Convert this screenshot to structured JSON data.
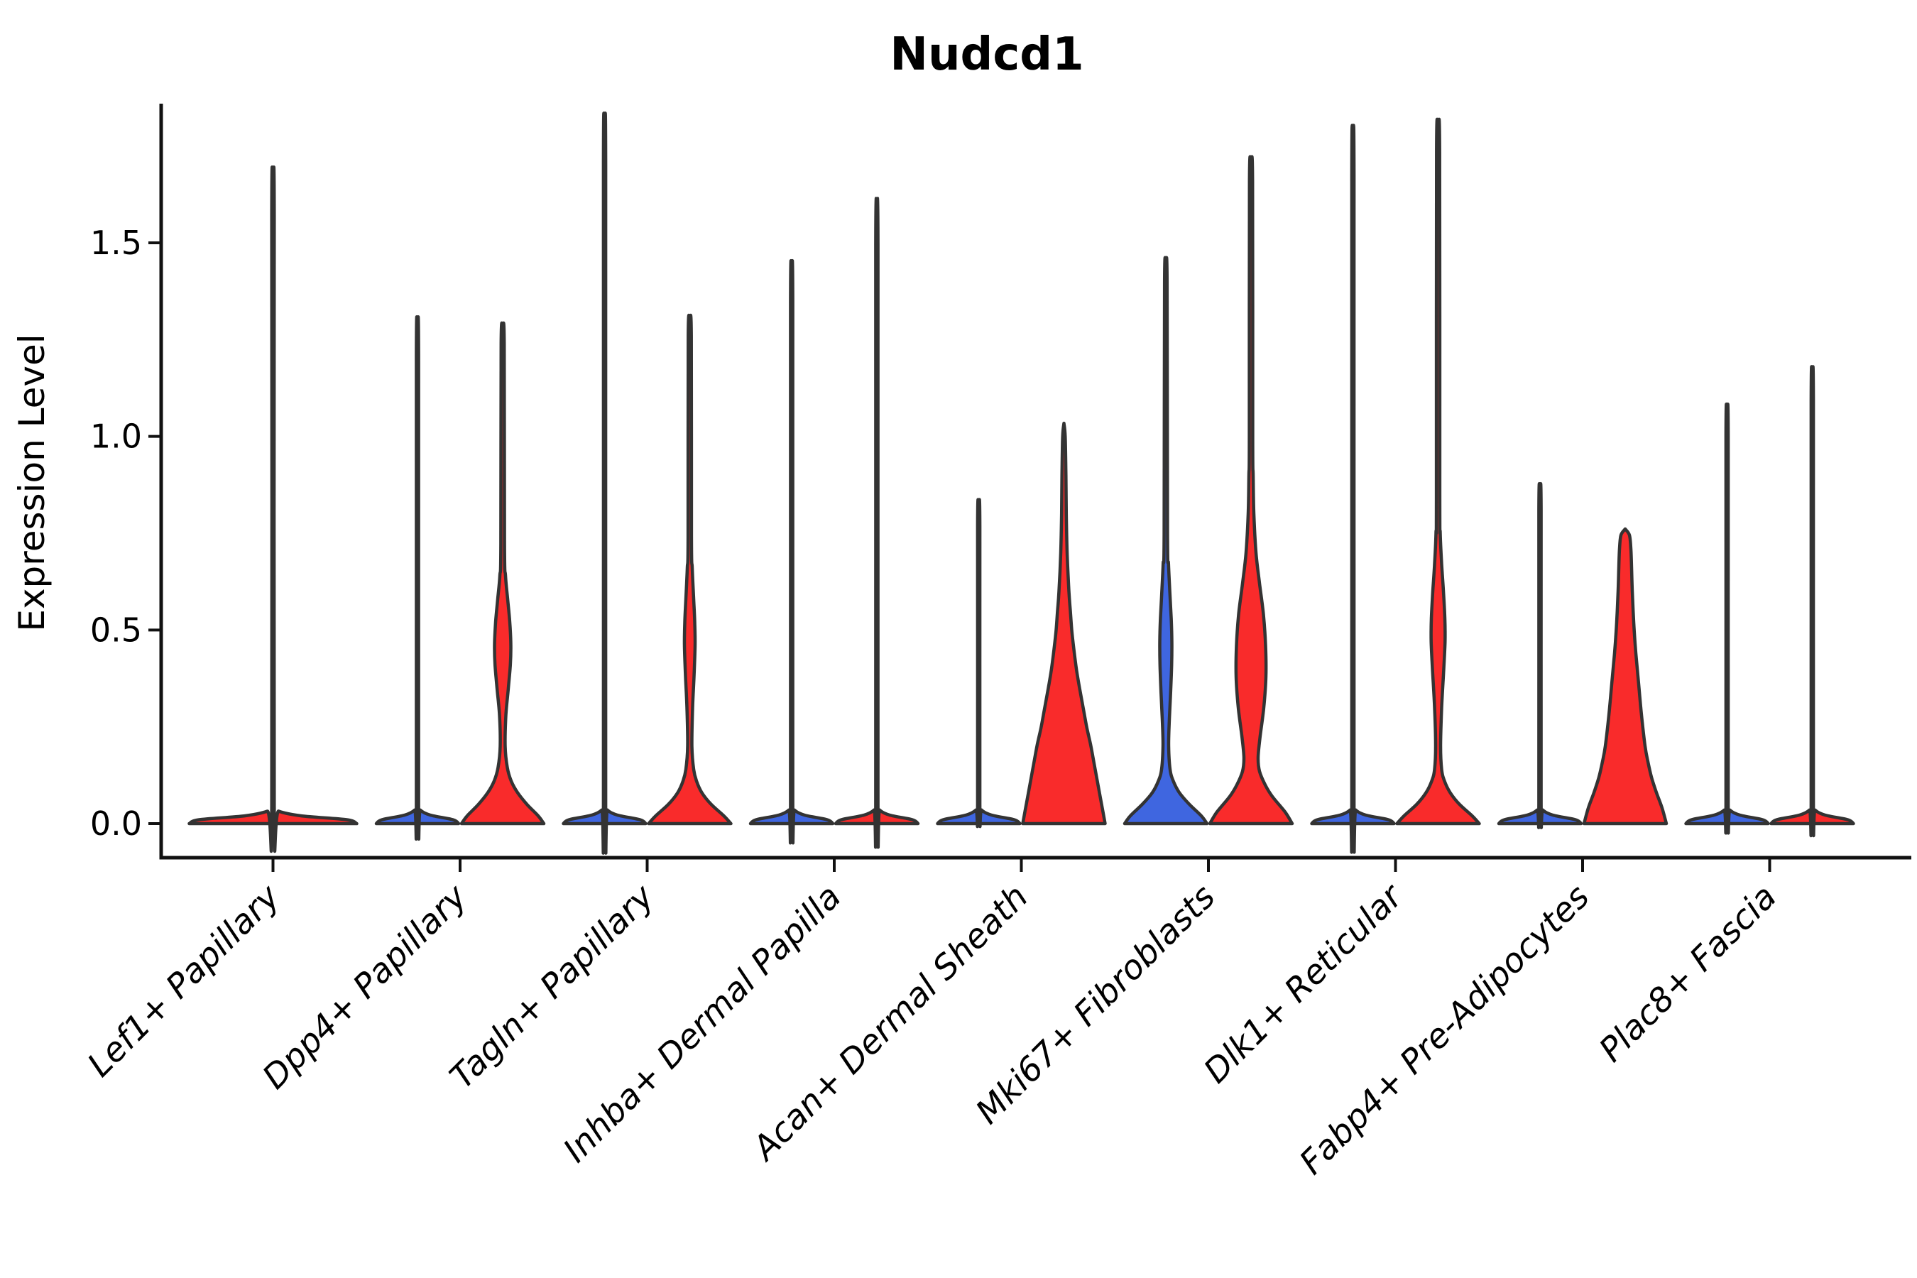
{
  "chart_data": {
    "type": "violin",
    "title": "Nudcd1",
    "ylabel": "Expression Level",
    "ylim": [
      0,
      1.86
    ],
    "yticks": [
      0.0,
      0.5,
      1.0,
      1.5
    ],
    "ytick_labels": [
      "0.0",
      "0.5",
      "1.0",
      "1.5"
    ],
    "legend": "none",
    "grid": false,
    "groups": [
      "left",
      "right"
    ],
    "group_colors": {
      "blue": "#3F66E0",
      "red": "#F92B2B"
    },
    "outline_color": "#333333",
    "axis_color": "#111111",
    "categories": [
      {
        "label": "Lef1+ Papillary",
        "violins": [
          {
            "group": "single",
            "color": "red",
            "offset": 0,
            "max_expression": 1.61,
            "profile": [
              [
                0,
                118
              ],
              [
                0.01,
                104
              ],
              [
                0.02,
                40
              ],
              [
                0.032,
                8
              ],
              [
                0.045,
                1.8
              ],
              [
                1.57,
                1.8
              ],
              [
                1.61,
                0
              ]
            ]
          }
        ]
      },
      {
        "label": "Dpp4+ Papillary",
        "violins": [
          {
            "group": "left",
            "color": "blue",
            "offset": -60,
            "max_expression": 1.25,
            "profile": [
              [
                0,
                58
              ],
              [
                0.01,
                50
              ],
              [
                0.022,
                18
              ],
              [
                0.035,
                4
              ],
              [
                0.05,
                1.6
              ],
              [
                1.21,
                1.6
              ],
              [
                1.25,
                0
              ]
            ]
          },
          {
            "group": "right",
            "color": "red",
            "offset": 60,
            "max_expression": 1.28,
            "profile": [
              [
                0,
                58
              ],
              [
                0.02,
                50
              ],
              [
                0.05,
                34
              ],
              [
                0.08,
                21
              ],
              [
                0.11,
                12
              ],
              [
                0.145,
                6.5
              ],
              [
                0.2,
                3.5
              ],
              [
                0.28,
                4.5
              ],
              [
                0.35,
                8
              ],
              [
                0.41,
                10.8
              ],
              [
                0.46,
                11.5
              ],
              [
                0.52,
                10
              ],
              [
                0.58,
                7
              ],
              [
                0.64,
                4
              ],
              [
                0.72,
                2.6
              ],
              [
                1.24,
                2.2
              ],
              [
                1.28,
                0
              ]
            ]
          }
        ]
      },
      {
        "label": "Tagln+ Papillary",
        "violins": [
          {
            "group": "left",
            "color": "blue",
            "offset": -60,
            "max_expression": 1.74,
            "profile": [
              [
                0,
                58
              ],
              [
                0.01,
                50
              ],
              [
                0.022,
                18
              ],
              [
                0.035,
                4
              ],
              [
                0.05,
                1.6
              ],
              [
                1.7,
                1.6
              ],
              [
                1.74,
                0
              ]
            ]
          },
          {
            "group": "right",
            "color": "red",
            "offset": 60,
            "max_expression": 1.3,
            "profile": [
              [
                0,
                58
              ],
              [
                0.02,
                48
              ],
              [
                0.05,
                30
              ],
              [
                0.08,
                17
              ],
              [
                0.11,
                9.5
              ],
              [
                0.14,
                5.5
              ],
              [
                0.2,
                3
              ],
              [
                0.3,
                4
              ],
              [
                0.38,
                6
              ],
              [
                0.46,
                7.5
              ],
              [
                0.52,
                7
              ],
              [
                0.58,
                5.5
              ],
              [
                0.66,
                3.5
              ],
              [
                0.74,
                2.4
              ],
              [
                1.26,
                2.2
              ],
              [
                1.3,
                0
              ]
            ]
          }
        ]
      },
      {
        "label": "Inhba+ Dermal Papilla",
        "violins": [
          {
            "group": "left",
            "color": "blue",
            "offset": -60,
            "max_expression": 1.39,
            "profile": [
              [
                0,
                58
              ],
              [
                0.01,
                50
              ],
              [
                0.022,
                18
              ],
              [
                0.035,
                4
              ],
              [
                0.05,
                1.6
              ],
              [
                1.345,
                1.6
              ],
              [
                1.385,
                0
              ]
            ]
          },
          {
            "group": "right",
            "color": "red",
            "offset": 60,
            "max_expression": 1.54,
            "profile": [
              [
                0,
                58
              ],
              [
                0.01,
                50
              ],
              [
                0.022,
                18
              ],
              [
                0.035,
                4
              ],
              [
                0.05,
                1.6
              ],
              [
                1.495,
                1.6
              ],
              [
                1.535,
                0
              ]
            ]
          }
        ]
      },
      {
        "label": "Acan+ Dermal Sheath",
        "violins": [
          {
            "group": "left",
            "color": "blue",
            "offset": -60,
            "max_expression": 0.81,
            "profile": [
              [
                0,
                58
              ],
              [
                0.01,
                50
              ],
              [
                0.022,
                18
              ],
              [
                0.035,
                4
              ],
              [
                0.05,
                1.6
              ],
              [
                0.77,
                1.6
              ],
              [
                0.81,
                0
              ]
            ]
          },
          {
            "group": "right",
            "color": "red",
            "offset": 60,
            "max_expression": 1.03,
            "profile": [
              [
                0,
                58
              ],
              [
                0.05,
                53
              ],
              [
                0.1,
                48
              ],
              [
                0.15,
                43
              ],
              [
                0.2,
                38
              ],
              [
                0.25,
                32
              ],
              [
                0.3,
                27
              ],
              [
                0.35,
                22
              ],
              [
                0.4,
                17.5
              ],
              [
                0.45,
                14
              ],
              [
                0.5,
                11
              ],
              [
                0.55,
                9
              ],
              [
                0.6,
                7
              ],
              [
                0.7,
                4.5
              ],
              [
                0.8,
                3.3
              ],
              [
                0.9,
                2.8
              ],
              [
                1.0,
                1.8
              ],
              [
                1.034,
                0
              ]
            ]
          }
        ]
      },
      {
        "label": "Mki67+ Fibroblasts",
        "violins": [
          {
            "group": "left",
            "color": "blue",
            "offset": -60,
            "max_expression": 1.44,
            "profile": [
              [
                0,
                58
              ],
              [
                0.02,
                50
              ],
              [
                0.05,
                33
              ],
              [
                0.08,
                19
              ],
              [
                0.11,
                10.5
              ],
              [
                0.14,
                6
              ],
              [
                0.2,
                4
              ],
              [
                0.27,
                5
              ],
              [
                0.34,
                6.8
              ],
              [
                0.41,
                8.2
              ],
              [
                0.47,
                8.5
              ],
              [
                0.53,
                7.6
              ],
              [
                0.6,
                5.6
              ],
              [
                0.67,
                3.8
              ],
              [
                0.75,
                2.4
              ],
              [
                1.4,
                1.8
              ],
              [
                1.44,
                0
              ]
            ]
          },
          {
            "group": "right",
            "color": "red",
            "offset": 60,
            "max_expression": 1.7,
            "profile": [
              [
                0,
                58
              ],
              [
                0.03,
                48
              ],
              [
                0.07,
                30
              ],
              [
                0.1,
                20
              ],
              [
                0.135,
                12
              ],
              [
                0.17,
                10
              ],
              [
                0.22,
                12.5
              ],
              [
                0.3,
                18
              ],
              [
                0.38,
                21
              ],
              [
                0.46,
                20.5
              ],
              [
                0.54,
                17.5
              ],
              [
                0.62,
                12
              ],
              [
                0.7,
                7
              ],
              [
                0.8,
                4
              ],
              [
                0.9,
                3
              ],
              [
                1.0,
                2.4
              ],
              [
                1.66,
                2.2
              ],
              [
                1.7,
                0
              ]
            ]
          }
        ]
      },
      {
        "label": "Dlk1+ Reticular",
        "violins": [
          {
            "group": "left",
            "color": "blue",
            "offset": -60,
            "max_expression": 1.71,
            "profile": [
              [
                0,
                58
              ],
              [
                0.01,
                50
              ],
              [
                0.022,
                18
              ],
              [
                0.035,
                4
              ],
              [
                0.05,
                1.6
              ],
              [
                1.67,
                1.6
              ],
              [
                1.712,
                0
              ]
            ]
          },
          {
            "group": "right",
            "color": "red",
            "offset": 60,
            "max_expression": 1.78,
            "profile": [
              [
                0,
                58
              ],
              [
                0.02,
                48
              ],
              [
                0.05,
                30
              ],
              [
                0.08,
                17
              ],
              [
                0.11,
                9
              ],
              [
                0.14,
                5
              ],
              [
                0.2,
                3.5
              ],
              [
                0.3,
                5
              ],
              [
                0.4,
                8
              ],
              [
                0.47,
                9.8
              ],
              [
                0.53,
                9.5
              ],
              [
                0.6,
                7.5
              ],
              [
                0.67,
                5
              ],
              [
                0.75,
                3
              ],
              [
                0.85,
                2.4
              ],
              [
                1.74,
                2.2
              ],
              [
                1.78,
                0
              ]
            ]
          }
        ]
      },
      {
        "label": "Fabp4+ Pre-Adipocytes",
        "violins": [
          {
            "group": "left",
            "color": "blue",
            "offset": -60,
            "max_expression": 0.85,
            "profile": [
              [
                0,
                58
              ],
              [
                0.01,
                50
              ],
              [
                0.022,
                18
              ],
              [
                0.035,
                4
              ],
              [
                0.05,
                1.6
              ],
              [
                0.81,
                1.6
              ],
              [
                0.845,
                0
              ]
            ]
          },
          {
            "group": "right",
            "color": "red",
            "offset": 60,
            "max_expression": 0.76,
            "profile": [
              [
                0,
                58
              ],
              [
                0.04,
                52
              ],
              [
                0.08,
                44
              ],
              [
                0.12,
                37
              ],
              [
                0.16,
                32
              ],
              [
                0.2,
                28
              ],
              [
                0.28,
                23
              ],
              [
                0.36,
                19
              ],
              [
                0.44,
                15
              ],
              [
                0.52,
                12
              ],
              [
                0.6,
                10
              ],
              [
                0.66,
                9
              ],
              [
                0.71,
                8
              ],
              [
                0.745,
                6
              ],
              [
                0.761,
                0
              ]
            ]
          }
        ]
      },
      {
        "label": "Plac8+ Fascia",
        "violins": [
          {
            "group": "left",
            "color": "blue",
            "offset": -60,
            "max_expression": 1.04,
            "profile": [
              [
                0,
                58
              ],
              [
                0.01,
                50
              ],
              [
                0.022,
                18
              ],
              [
                0.035,
                4
              ],
              [
                0.05,
                1.6
              ],
              [
                1.0,
                1.6
              ],
              [
                1.04,
                0
              ]
            ]
          },
          {
            "group": "right",
            "color": "red",
            "offset": 60,
            "max_expression": 1.13,
            "profile": [
              [
                0,
                58
              ],
              [
                0.01,
                50
              ],
              [
                0.022,
                18
              ],
              [
                0.035,
                4
              ],
              [
                0.05,
                1.6
              ],
              [
                1.09,
                1.6
              ],
              [
                1.13,
                0
              ]
            ]
          }
        ]
      }
    ]
  }
}
